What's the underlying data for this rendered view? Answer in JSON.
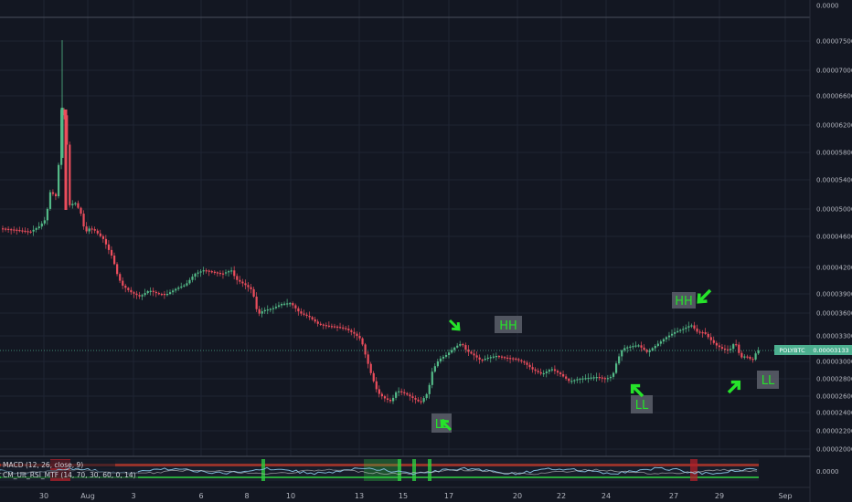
{
  "chart_data": {
    "type": "candlestick",
    "symbol": "POLYBTC",
    "last_price": "0.00003133",
    "y_ticks": [
      "0.0000",
      "0.00007500",
      "0.00007000",
      "0.00006600",
      "0.00006200",
      "0.00005800",
      "0.00005400",
      "0.00005000",
      "0.00004600",
      "0.00004200",
      "0.00003900",
      "0.00003600",
      "0.00003300",
      "0.00003000",
      "0.00002800",
      "0.00002600",
      "0.00002400",
      "0.00002200",
      "0.00002000"
    ],
    "x_ticks": [
      "30",
      "Aug",
      "3",
      "6",
      "8",
      "10",
      "13",
      "15",
      "17",
      "20",
      "22",
      "24",
      "27",
      "29",
      "Sep"
    ],
    "annotations": [
      "HH",
      "HH",
      "LL",
      "LL",
      "LL"
    ],
    "indicator_labels": [
      "MACD (12, 26, close, 9)",
      "CM_Ult_RSI_MTF (14, 70, 30, 60, 0, 14)"
    ],
    "indicator_zero": "0.0000",
    "colors": {
      "up": "#53b987",
      "down": "#eb4d5c",
      "background": "#131722",
      "grid": "#1f2433",
      "annotation": "#26e32a",
      "last_price": "#4caf8f"
    }
  }
}
